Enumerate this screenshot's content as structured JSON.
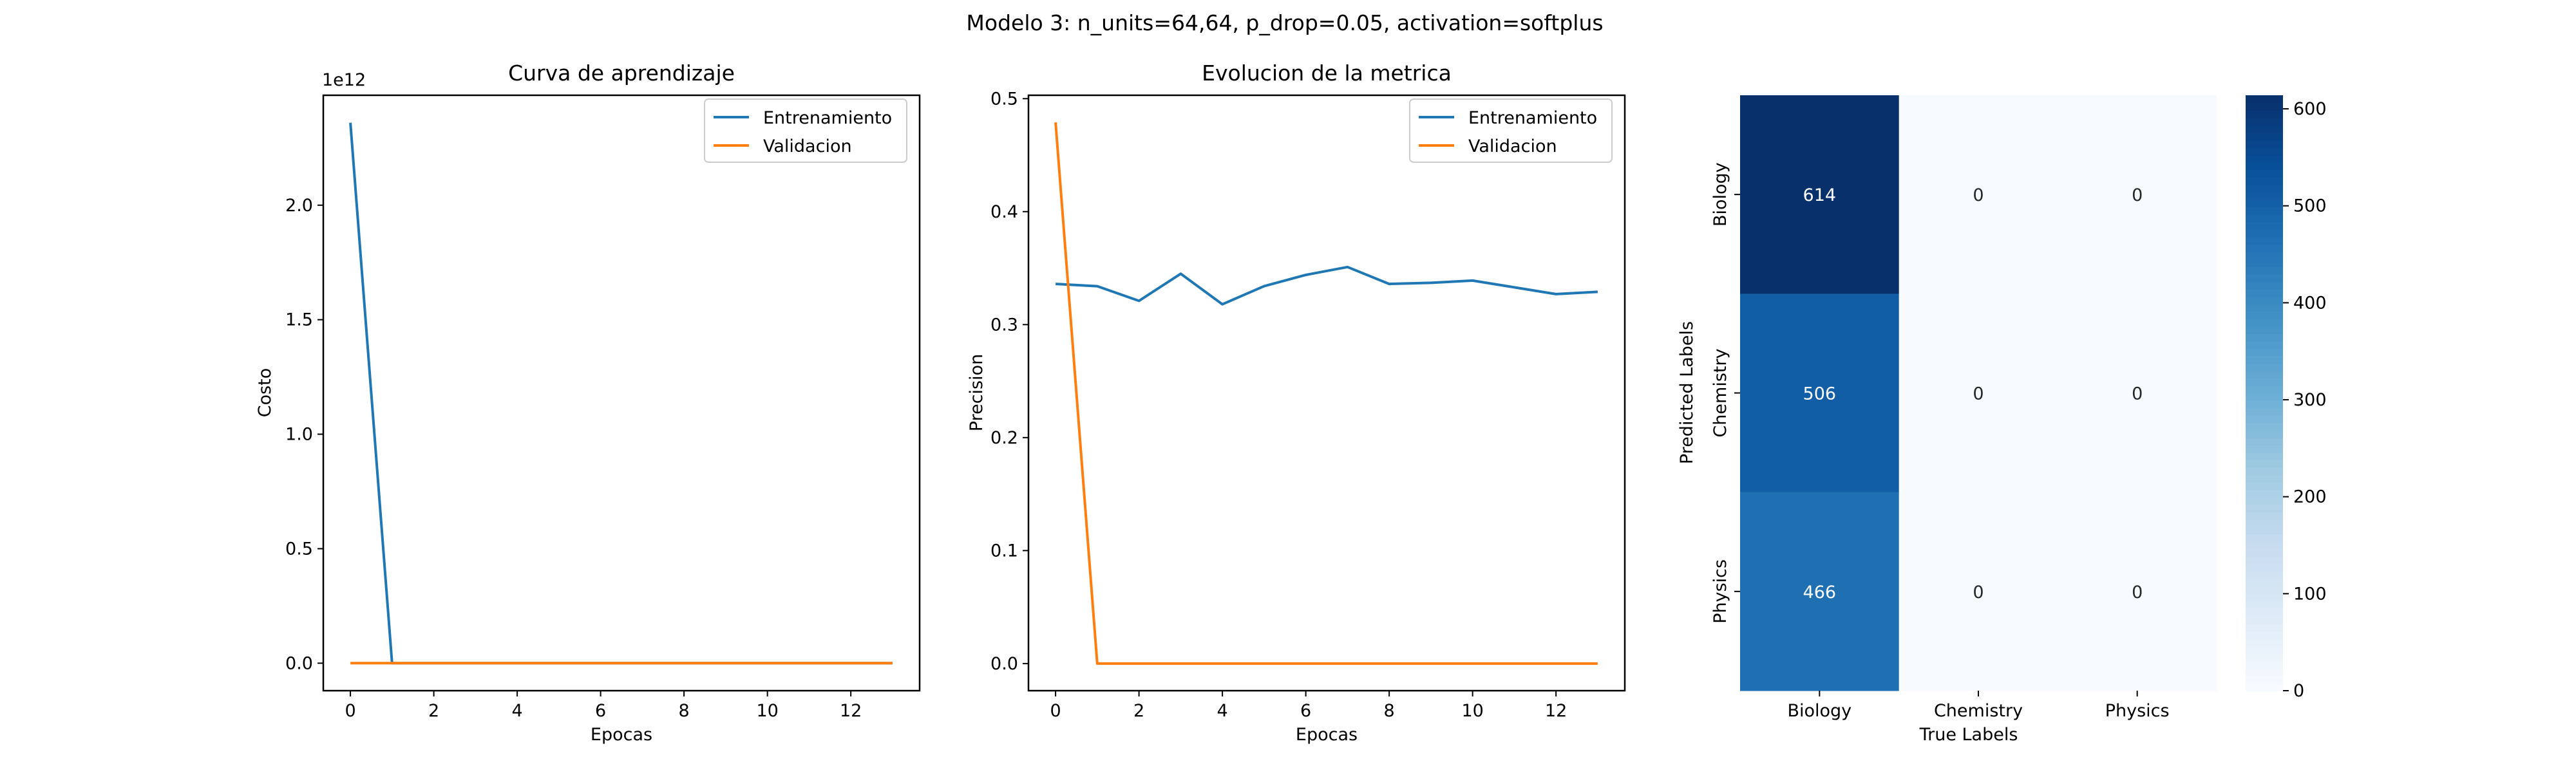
{
  "figure": {
    "suptitle": "Modelo 3: n_units=64,64, p_drop=0.05, activation=softplus"
  },
  "colors": {
    "train": "#1f77b4",
    "val": "#ff7f0e"
  },
  "chart_data": [
    {
      "type": "line",
      "title": "Curva de aprendizaje",
      "xlabel": "Epocas",
      "ylabel": "Costo",
      "offset_text": "1e12",
      "x": [
        0,
        1,
        2,
        3,
        4,
        5,
        6,
        7,
        8,
        9,
        10,
        11,
        12,
        13
      ],
      "series": [
        {
          "name": "Entrenamiento",
          "values": [
            2.36,
            0,
            0,
            0,
            0,
            0,
            0,
            0,
            0,
            0,
            0,
            0,
            0,
            0
          ]
        },
        {
          "name": "Validacion",
          "values": [
            0,
            0,
            0,
            0,
            0,
            0,
            0,
            0,
            0,
            0,
            0,
            0,
            0,
            0
          ]
        }
      ],
      "xlim": [
        -0.65,
        13.65
      ],
      "ylim": [
        -0.12,
        2.48
      ],
      "xticks": [
        0,
        2,
        4,
        6,
        8,
        10,
        12
      ],
      "yticks": [
        0.0,
        0.5,
        1.0,
        1.5,
        2.0
      ],
      "ytick_labels": [
        "0.0",
        "0.5",
        "1.0",
        "1.5",
        "2.0"
      ],
      "legend": "top-right",
      "grid": false
    },
    {
      "type": "line",
      "title": "Evolucion de la metrica",
      "xlabel": "Epocas",
      "ylabel": "Precision",
      "x": [
        0,
        1,
        2,
        3,
        4,
        5,
        6,
        7,
        8,
        9,
        10,
        11,
        12,
        13
      ],
      "series": [
        {
          "name": "Entrenamiento",
          "values": [
            0.336,
            0.334,
            0.321,
            0.345,
            0.318,
            0.334,
            0.344,
            0.351,
            0.336,
            0.337,
            0.339,
            0.333,
            0.327,
            0.329
          ]
        },
        {
          "name": "Validacion",
          "values": [
            0.479,
            0,
            0,
            0,
            0,
            0,
            0,
            0,
            0,
            0,
            0,
            0,
            0,
            0
          ]
        }
      ],
      "xlim": [
        -0.65,
        13.65
      ],
      "ylim": [
        -0.024,
        0.503
      ],
      "xticks": [
        0,
        2,
        4,
        6,
        8,
        10,
        12
      ],
      "yticks": [
        0.0,
        0.1,
        0.2,
        0.3,
        0.4,
        0.5
      ],
      "ytick_labels": [
        "0.0",
        "0.1",
        "0.2",
        "0.3",
        "0.4",
        "0.5"
      ],
      "legend": "top-right",
      "grid": false
    },
    {
      "type": "heatmap",
      "xlabel": "True Labels",
      "ylabel": "Predicted Labels",
      "x_categories": [
        "Biology",
        "Chemistry",
        "Physics"
      ],
      "y_categories": [
        "Biology",
        "Chemistry",
        "Physics"
      ],
      "values": [
        [
          614,
          0,
          0
        ],
        [
          506,
          0,
          0
        ],
        [
          466,
          0,
          0
        ]
      ],
      "colormap": "Blues",
      "colorbar": {
        "min": 0,
        "max": 614,
        "ticks": [
          0,
          100,
          200,
          300,
          400,
          500,
          600
        ]
      }
    }
  ]
}
